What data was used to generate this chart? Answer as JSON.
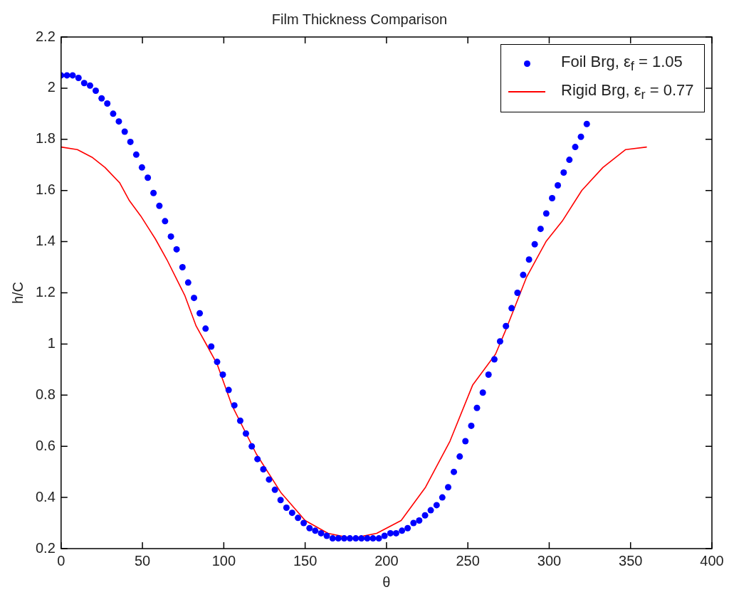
{
  "chart_data": {
    "type": "line",
    "title": "Film Thickness Comparison",
    "xlabel": "θ",
    "ylabel": "h/C",
    "xlim": [
      0,
      400
    ],
    "xticks": [
      0,
      50,
      100,
      150,
      200,
      250,
      300,
      350,
      400
    ],
    "ylim": [
      0.2,
      2.2
    ],
    "yticks": [
      0.2,
      0.4,
      0.6,
      0.8,
      1,
      1.2,
      1.4,
      1.6,
      1.8,
      2,
      2.2
    ],
    "legend": "top right",
    "series": [
      {
        "name": "Foil Brg, ε$_{f}$ = 1.05",
        "type": "scatter",
        "marker": "circle",
        "color": "#0000ff",
        "x": [
          0,
          3.6,
          7.1,
          10.7,
          14.2,
          17.8,
          21.3,
          24.9,
          28.4,
          32,
          35.5,
          39.1,
          42.6,
          46.2,
          49.7,
          53.3,
          56.8,
          60.4,
          63.9,
          67.5,
          71,
          74.6,
          78.1,
          81.7,
          85.2,
          88.8,
          92.3,
          95.9,
          99.4,
          103,
          106.5,
          110.1,
          113.6,
          117.2,
          120.7,
          124.3,
          127.8,
          131.4,
          134.9,
          138.5,
          142,
          145.6,
          149.1,
          152.7,
          156.2,
          159.8,
          163.3,
          166.9,
          170.4,
          174,
          177.5,
          181.1,
          184.6,
          188.2,
          191.7,
          195.3,
          198.8,
          202.4,
          205.9,
          209.5,
          213,
          216.6,
          220.1,
          223.7,
          227.2,
          230.8,
          234.3,
          237.9,
          241.4,
          245,
          248.5,
          252.1,
          255.6,
          259.2,
          262.7,
          266.3,
          269.8,
          273.4,
          276.9,
          280.5,
          284,
          287.6,
          291.1,
          294.7,
          298.2,
          301.8,
          305.3,
          308.9,
          312.4,
          316,
          319.5,
          323.1
        ],
        "values": [
          2.05,
          2.05,
          2.05,
          2.04,
          2.02,
          2.01,
          1.99,
          1.96,
          1.94,
          1.9,
          1.87,
          1.83,
          1.79,
          1.74,
          1.69,
          1.65,
          1.59,
          1.54,
          1.48,
          1.42,
          1.37,
          1.3,
          1.24,
          1.18,
          1.12,
          1.06,
          0.99,
          0.93,
          0.88,
          0.82,
          0.76,
          0.7,
          0.65,
          0.6,
          0.55,
          0.51,
          0.47,
          0.43,
          0.39,
          0.36,
          0.34,
          0.32,
          0.3,
          0.28,
          0.27,
          0.26,
          0.25,
          0.24,
          0.24,
          0.24,
          0.24,
          0.24,
          0.24,
          0.24,
          0.24,
          0.24,
          0.25,
          0.26,
          0.26,
          0.27,
          0.28,
          0.3,
          0.31,
          0.33,
          0.35,
          0.37,
          0.4,
          0.44,
          0.5,
          0.56,
          0.62,
          0.68,
          0.75,
          0.81,
          0.88,
          0.94,
          1.01,
          1.07,
          1.14,
          1.2,
          1.27,
          1.33,
          1.39,
          1.45,
          1.51,
          1.57,
          1.62,
          1.67,
          1.72,
          1.77,
          1.81,
          1.86
        ]
      },
      {
        "name": "Rigid Brg, ε$_{r}$ = 0.77",
        "type": "line",
        "marker": "none",
        "line_style": "solid",
        "color": "#ff0000",
        "x": [
          0,
          10,
          19,
          27,
          36,
          42,
          49,
          54,
          58,
          65,
          76,
          83,
          90,
          96,
          105,
          120,
          135,
          150,
          164,
          179,
          194,
          209,
          224,
          239,
          253,
          267,
          273,
          286,
          298,
          308,
          320,
          333,
          347,
          360
        ],
        "values": [
          1.77,
          1.76,
          1.73,
          1.69,
          1.63,
          1.56,
          1.5,
          1.45,
          1.41,
          1.33,
          1.19,
          1.07,
          0.99,
          0.92,
          0.76,
          0.57,
          0.42,
          0.31,
          0.26,
          0.24,
          0.26,
          0.31,
          0.44,
          0.62,
          0.84,
          0.96,
          1.05,
          1.26,
          1.4,
          1.48,
          1.6,
          1.69,
          1.76,
          1.77
        ]
      }
    ]
  }
}
